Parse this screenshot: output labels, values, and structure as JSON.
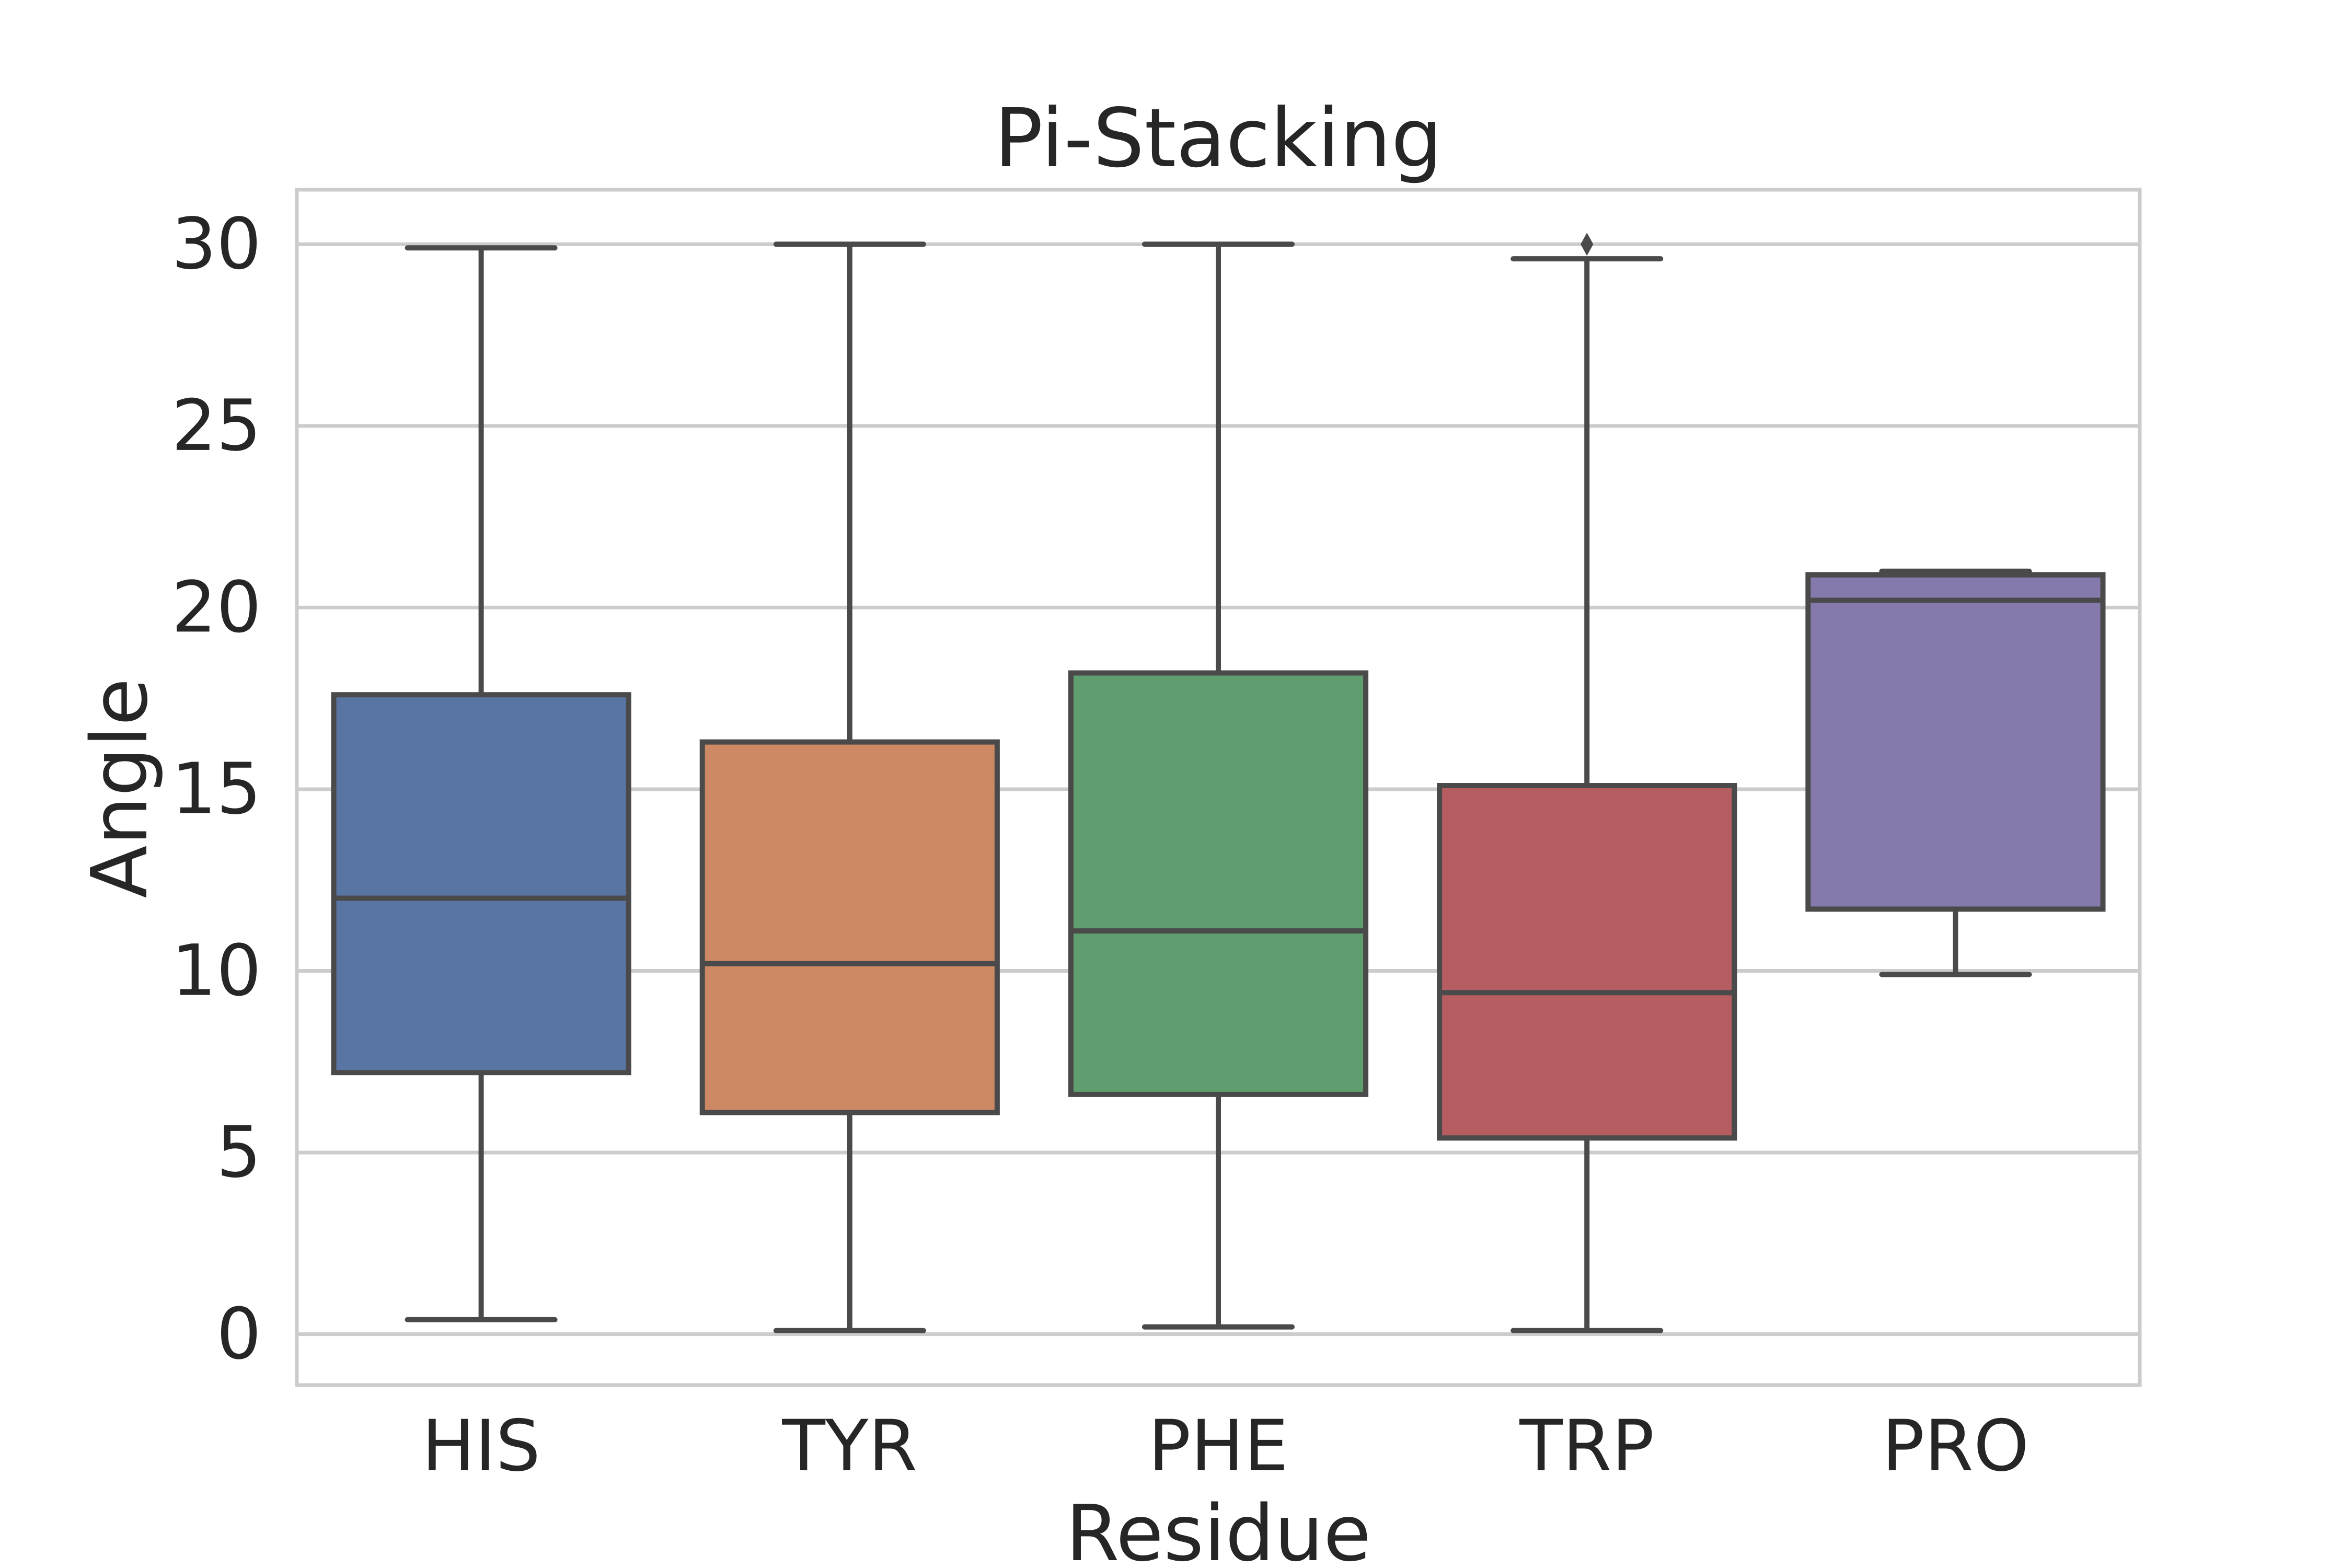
{
  "chart_data": {
    "type": "boxplot",
    "title": "Pi-Stacking",
    "xlabel": "Residue",
    "ylabel": "Angle",
    "categories": [
      "HIS",
      "TYR",
      "PHE",
      "TRP",
      "PRO"
    ],
    "ylim": [
      -1.4,
      31.5
    ],
    "yticks": [
      0,
      5,
      10,
      15,
      20,
      25,
      30
    ],
    "ytick_labels": [
      "0",
      "5",
      "10",
      "15",
      "20",
      "25",
      "30"
    ],
    "grid": true,
    "legend": "none",
    "series": [
      {
        "category": "HIS",
        "whisker_low": 0.4,
        "q1": 7.2,
        "median": 12.0,
        "q3": 17.6,
        "whisker_high": 29.9,
        "outliers": [],
        "color": "#5975a4"
      },
      {
        "category": "TYR",
        "whisker_low": 0.1,
        "q1": 6.1,
        "median": 10.2,
        "q3": 16.3,
        "whisker_high": 30.0,
        "outliers": [],
        "color": "#cc8963"
      },
      {
        "category": "PHE",
        "whisker_low": 0.2,
        "q1": 6.6,
        "median": 11.1,
        "q3": 18.2,
        "whisker_high": 30.0,
        "outliers": [],
        "color": "#5f9e6e"
      },
      {
        "category": "TRP",
        "whisker_low": 0.1,
        "q1": 5.4,
        "median": 9.4,
        "q3": 15.1,
        "whisker_high": 29.6,
        "outliers": [
          30.0
        ],
        "color": "#b55d60"
      },
      {
        "category": "PRO",
        "whisker_low": 9.9,
        "q1": 11.7,
        "median": 20.2,
        "q3": 20.9,
        "whisker_high": 21.0,
        "outliers": [],
        "color": "#857aab"
      }
    ]
  }
}
